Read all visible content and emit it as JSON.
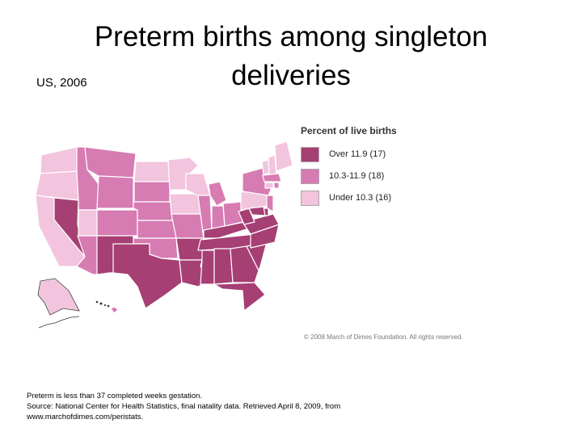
{
  "title": "Preterm births among singleton deliveries",
  "subtitle": "US, 2006",
  "legend": {
    "title": "Percent of live births",
    "items": [
      {
        "label": "Over 11.9 (17)",
        "color": "#a63f73"
      },
      {
        "label": "10.3-11.9 (18)",
        "color": "#d77bb3"
      },
      {
        "label": "Under 10.3 (16)",
        "color": "#f2c4dd"
      }
    ]
  },
  "copyright": "© 2008 March of Dimes Foundation. All rights reserved.",
  "footnote": {
    "line1": "Preterm is less than 37 completed weeks gestation.",
    "line2": "Source: National Center for Health Statistics, final natality data. Retrieved April 8, 2009, from",
    "line3": "www.marchofdimes.com/peristats."
  },
  "colors": {
    "high": "#a63f73",
    "mid": "#d77bb3",
    "low": "#f2c4dd",
    "border": "#ffffff"
  }
}
